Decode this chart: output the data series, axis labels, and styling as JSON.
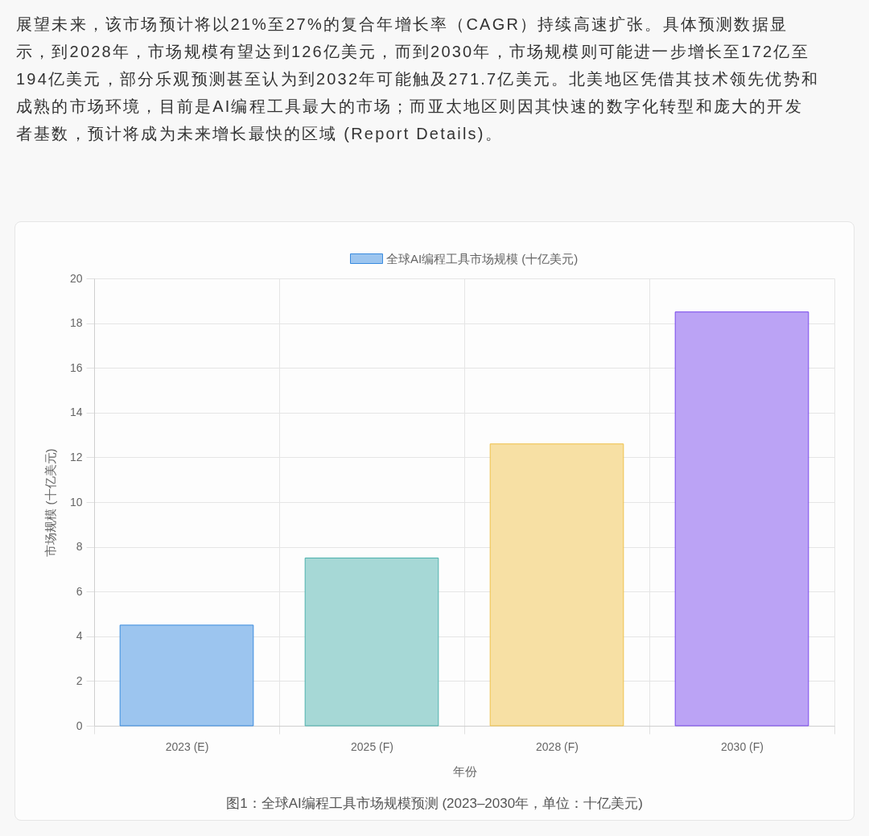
{
  "chart_data": {
    "type": "bar",
    "categories": [
      "2023 (E)",
      "2025 (F)",
      "2028 (F)",
      "2030 (F)"
    ],
    "series": [
      {
        "name": "全球AI编程工具市场规模 (十亿美元)",
        "colors": [
          "#9cc5ef",
          "#a6d8d6",
          "#f7e0a4",
          "#bba3f5"
        ],
        "values": [
          4.5,
          7.5,
          12.6,
          18.5
        ]
      }
    ],
    "xlabel": "年份",
    "ylabel": "市场规模 (十亿美元)",
    "ylim": [
      0,
      20
    ],
    "yticks": [
      0,
      2,
      4,
      6,
      8,
      10,
      12,
      14,
      16,
      18,
      20
    ],
    "grid": true,
    "legend": "top",
    "annotations": [
      "展望未来，该市场预计将以21%至27%的复合年增长率（CAGR）持续高速扩张。具体预测数据显示，到2028年，市场规模有望达到126亿美元，而到2030年，市场规模则可能进一步增长至172亿至194亿美元，部分乐观预测甚至认为到2032年可能触及271.7亿美元。北美地区凭借其技术领先优势和成熟的市场环境，目前是AI编程工具最大的市场；而亚太地区则因其快速的数字化转型和庞大的开发者基数，预计将成为未来增长最快的区域 (Report Details)。",
      "图1：全球AI编程工具市场规模预测 (2023–2030年，单位：十亿美元)"
    ]
  }
}
